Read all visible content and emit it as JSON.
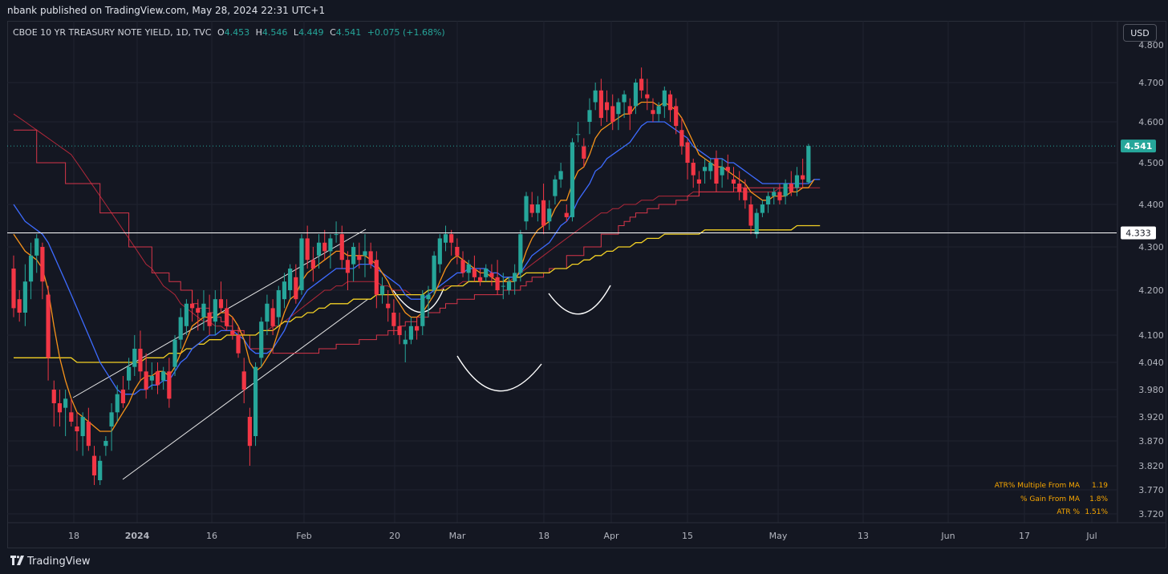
{
  "header": {
    "published_text": "nbank published on TradingView.com, May 28, 2024 22:31 UTC+1"
  },
  "legend": {
    "symbol": "CBOE 10 YR TREASURY NOTE YIELD, 1D, TVC",
    "open_label": "O",
    "open": "4.453",
    "high_label": "H",
    "high": "4.546",
    "low_label": "L",
    "low": "4.449",
    "close_label": "C",
    "close": "4.541",
    "change": "+0.075 (+1.68%)"
  },
  "currency_button": "USD",
  "price_badges": {
    "last": "4.541",
    "hline": "4.333"
  },
  "stats": [
    {
      "label": "ATR% Multiple From MA",
      "value": "1.19"
    },
    {
      "label": "% Gain From MA",
      "value": "1.8%"
    },
    {
      "label": "ATR %",
      "value": "1.51%"
    }
  ],
  "footer": {
    "brand": "TradingView",
    "logo_icon": "tradingview-logo-icon"
  },
  "colors": {
    "background": "#131722",
    "up": "#26a69a",
    "down": "#f23645",
    "hline": "#ffffff",
    "last_badge": "#26a69a"
  },
  "chart_data": {
    "type": "candlestick",
    "x_axis_labels": [
      "18",
      "2024",
      "16",
      "Feb",
      "20",
      "Mar",
      "18",
      "Apr",
      "15",
      "May",
      "13",
      "Jun",
      "17",
      "Jul"
    ],
    "y_axis_labels": [
      "4.700",
      "4.600",
      "4.500",
      "4.400",
      "4.300",
      "4.200",
      "4.100",
      "4.040",
      "3.980",
      "3.920",
      "3.870",
      "3.820",
      "3.770",
      "3.720"
    ],
    "y_axis_partial_label": "4.800",
    "horizontal_line": 4.333,
    "last_price": 4.541,
    "candles": [
      [
        4.25,
        4.28,
        4.14,
        4.16
      ],
      [
        4.18,
        4.2,
        4.13,
        4.15
      ],
      [
        4.15,
        4.26,
        4.12,
        4.22
      ],
      [
        4.22,
        4.31,
        4.18,
        4.28
      ],
      [
        4.28,
        4.33,
        4.24,
        4.32
      ],
      [
        4.3,
        4.31,
        4.18,
        4.22
      ],
      [
        4.19,
        4.21,
        4.0,
        4.05
      ],
      [
        3.98,
        4.0,
        3.9,
        3.95
      ],
      [
        3.95,
        3.98,
        3.9,
        3.93
      ],
      [
        3.94,
        3.98,
        3.88,
        3.96
      ],
      [
        3.93,
        3.96,
        3.9,
        3.91
      ],
      [
        3.9,
        3.93,
        3.85,
        3.89
      ],
      [
        3.88,
        3.93,
        3.84,
        3.92
      ],
      [
        3.91,
        3.94,
        3.85,
        3.86
      ],
      [
        3.84,
        3.86,
        3.78,
        3.8
      ],
      [
        3.79,
        3.84,
        3.78,
        3.83
      ],
      [
        3.86,
        3.88,
        3.84,
        3.87
      ],
      [
        3.9,
        3.95,
        3.85,
        3.93
      ],
      [
        3.93,
        3.99,
        3.91,
        3.97
      ],
      [
        3.98,
        4.01,
        3.94,
        3.95
      ],
      [
        4.0,
        4.05,
        3.98,
        4.03
      ],
      [
        4.03,
        4.1,
        4.01,
        4.07
      ],
      [
        4.07,
        4.11,
        4.0,
        4.02
      ],
      [
        4.02,
        4.06,
        3.96,
        3.98
      ],
      [
        4.0,
        4.04,
        3.98,
        4.01
      ],
      [
        4.02,
        4.04,
        3.97,
        3.99
      ],
      [
        4.0,
        4.03,
        3.98,
        4.02
      ],
      [
        4.02,
        4.05,
        3.94,
        3.96
      ],
      [
        4.03,
        4.1,
        4.01,
        4.09
      ],
      [
        4.09,
        4.16,
        4.07,
        4.14
      ],
      [
        4.12,
        4.18,
        4.1,
        4.17
      ],
      [
        4.17,
        4.2,
        4.13,
        4.16
      ],
      [
        4.16,
        4.18,
        4.11,
        4.15
      ],
      [
        4.14,
        4.2,
        4.11,
        4.17
      ],
      [
        4.15,
        4.19,
        4.1,
        4.12
      ],
      [
        4.13,
        4.2,
        4.1,
        4.18
      ],
      [
        4.18,
        4.22,
        4.15,
        4.16
      ],
      [
        4.16,
        4.18,
        4.11,
        4.12
      ],
      [
        4.11,
        4.14,
        4.09,
        4.1
      ],
      [
        4.1,
        4.12,
        4.05,
        4.06
      ],
      [
        4.02,
        4.05,
        3.95,
        3.98
      ],
      [
        3.92,
        3.94,
        3.82,
        3.86
      ],
      [
        3.88,
        4.04,
        3.86,
        4.03
      ],
      [
        4.05,
        4.14,
        4.03,
        4.13
      ],
      [
        4.13,
        4.19,
        4.1,
        4.17
      ],
      [
        4.16,
        4.18,
        4.1,
        4.12
      ],
      [
        4.14,
        4.21,
        4.12,
        4.2
      ],
      [
        4.18,
        4.24,
        4.16,
        4.22
      ],
      [
        4.2,
        4.26,
        4.18,
        4.25
      ],
      [
        4.23,
        4.26,
        4.17,
        4.18
      ],
      [
        4.2,
        4.33,
        4.19,
        4.32
      ],
      [
        4.32,
        4.35,
        4.25,
        4.27
      ],
      [
        4.27,
        4.3,
        4.22,
        4.25
      ],
      [
        4.28,
        4.33,
        4.25,
        4.31
      ],
      [
        4.31,
        4.34,
        4.27,
        4.29
      ],
      [
        4.29,
        4.33,
        4.25,
        4.32
      ],
      [
        4.33,
        4.36,
        4.31,
        4.33
      ],
      [
        4.33,
        4.35,
        4.25,
        4.27
      ],
      [
        4.27,
        4.29,
        4.2,
        4.24
      ],
      [
        4.26,
        4.31,
        4.22,
        4.3
      ],
      [
        4.28,
        4.31,
        4.25,
        4.27
      ],
      [
        4.28,
        4.33,
        4.23,
        4.29
      ],
      [
        4.29,
        4.31,
        4.25,
        4.26
      ],
      [
        4.27,
        4.29,
        4.16,
        4.19
      ],
      [
        4.19,
        4.23,
        4.17,
        4.21
      ],
      [
        4.17,
        4.2,
        4.13,
        4.16
      ],
      [
        4.15,
        4.18,
        4.1,
        4.12
      ],
      [
        4.12,
        4.15,
        4.08,
        4.1
      ],
      [
        4.08,
        4.11,
        4.04,
        4.09
      ],
      [
        4.09,
        4.14,
        4.08,
        4.12
      ],
      [
        4.12,
        4.14,
        4.09,
        4.11
      ],
      [
        4.12,
        4.2,
        4.1,
        4.19
      ],
      [
        4.18,
        4.21,
        4.14,
        4.19
      ],
      [
        4.2,
        4.29,
        4.19,
        4.28
      ],
      [
        4.26,
        4.33,
        4.24,
        4.32
      ],
      [
        4.31,
        4.35,
        4.29,
        4.33
      ],
      [
        4.33,
        4.34,
        4.28,
        4.31
      ],
      [
        4.3,
        4.32,
        4.26,
        4.28
      ],
      [
        4.27,
        4.29,
        4.23,
        4.24
      ],
      [
        4.24,
        4.27,
        4.22,
        4.26
      ],
      [
        4.25,
        4.28,
        4.22,
        4.23
      ],
      [
        4.23,
        4.25,
        4.21,
        4.22
      ],
      [
        4.23,
        4.26,
        4.22,
        4.25
      ],
      [
        4.24,
        4.26,
        4.21,
        4.23
      ],
      [
        4.23,
        4.27,
        4.19,
        4.2
      ],
      [
        4.21,
        4.24,
        4.18,
        4.21
      ],
      [
        4.2,
        4.23,
        4.19,
        4.22
      ],
      [
        4.22,
        4.26,
        4.19,
        4.24
      ],
      [
        4.24,
        4.34,
        4.22,
        4.33
      ],
      [
        4.36,
        4.43,
        4.34,
        4.42
      ],
      [
        4.4,
        4.43,
        4.37,
        4.38
      ],
      [
        4.38,
        4.42,
        4.36,
        4.4
      ],
      [
        4.41,
        4.45,
        4.33,
        4.35
      ],
      [
        4.36,
        4.41,
        4.34,
        4.39
      ],
      [
        4.42,
        4.47,
        4.4,
        4.46
      ],
      [
        4.46,
        4.5,
        4.44,
        4.48
      ],
      [
        4.38,
        4.4,
        4.36,
        4.37
      ],
      [
        4.37,
        4.56,
        4.36,
        4.55
      ],
      [
        4.57,
        4.6,
        4.55,
        4.57
      ],
      [
        4.54,
        4.56,
        4.49,
        4.51
      ],
      [
        4.6,
        4.66,
        4.57,
        4.63
      ],
      [
        4.65,
        4.7,
        4.63,
        4.68
      ],
      [
        4.68,
        4.71,
        4.59,
        4.61
      ],
      [
        4.65,
        4.68,
        4.6,
        4.63
      ],
      [
        4.64,
        4.67,
        4.58,
        4.6
      ],
      [
        4.62,
        4.66,
        4.58,
        4.65
      ],
      [
        4.65,
        4.68,
        4.61,
        4.67
      ],
      [
        4.64,
        4.66,
        4.58,
        4.62
      ],
      [
        4.64,
        4.71,
        4.62,
        4.7
      ],
      [
        4.71,
        4.74,
        4.66,
        4.68
      ],
      [
        4.67,
        4.71,
        4.63,
        4.66
      ],
      [
        4.63,
        4.66,
        4.6,
        4.62
      ],
      [
        4.62,
        4.65,
        4.6,
        4.64
      ],
      [
        4.64,
        4.69,
        4.61,
        4.68
      ],
      [
        4.67,
        4.68,
        4.6,
        4.63
      ],
      [
        4.64,
        4.66,
        4.57,
        4.59
      ],
      [
        4.58,
        4.61,
        4.52,
        4.54
      ],
      [
        4.55,
        4.56,
        4.46,
        4.5
      ],
      [
        4.5,
        4.51,
        4.44,
        4.47
      ],
      [
        4.46,
        4.48,
        4.42,
        4.45
      ],
      [
        4.48,
        4.51,
        4.45,
        4.49
      ],
      [
        4.48,
        4.51,
        4.46,
        4.5
      ],
      [
        4.51,
        4.53,
        4.43,
        4.45
      ],
      [
        4.47,
        4.51,
        4.44,
        4.49
      ],
      [
        4.49,
        4.52,
        4.46,
        4.48
      ],
      [
        4.46,
        4.49,
        4.43,
        4.45
      ],
      [
        4.45,
        4.48,
        4.41,
        4.43
      ],
      [
        4.44,
        4.46,
        4.39,
        4.41
      ],
      [
        4.4,
        4.42,
        4.33,
        4.35
      ],
      [
        4.33,
        4.39,
        4.32,
        4.38
      ],
      [
        4.38,
        4.41,
        4.37,
        4.4
      ],
      [
        4.4,
        4.43,
        4.38,
        4.42
      ],
      [
        4.42,
        4.44,
        4.4,
        4.43
      ],
      [
        4.43,
        4.45,
        4.4,
        4.41
      ],
      [
        4.42,
        4.46,
        4.4,
        4.45
      ],
      [
        4.45,
        4.48,
        4.42,
        4.43
      ],
      [
        4.44,
        4.49,
        4.42,
        4.47
      ],
      [
        4.47,
        4.51,
        4.44,
        4.46
      ],
      [
        4.453,
        4.546,
        4.449,
        4.541
      ]
    ],
    "ma_orange": [
      4.33,
      4.31,
      4.29,
      4.28,
      4.27,
      4.25,
      4.2,
      4.12,
      4.05,
      4.0,
      3.96,
      3.93,
      3.92,
      3.91,
      3.9,
      3.89,
      3.89,
      3.89,
      3.91,
      3.93,
      3.95,
      3.98,
      4.0,
      4.01,
      4.01,
      4.02,
      4.02,
      4.01,
      4.03,
      4.06,
      4.09,
      4.12,
      4.13,
      4.14,
      4.14,
      4.14,
      4.15,
      4.15,
      4.14,
      4.12,
      4.09,
      4.04,
      4.02,
      4.03,
      4.05,
      4.07,
      4.11,
      4.15,
      4.18,
      4.19,
      4.22,
      4.24,
      4.25,
      4.26,
      4.27,
      4.28,
      4.29,
      4.29,
      4.28,
      4.28,
      4.28,
      4.28,
      4.27,
      4.26,
      4.24,
      4.22,
      4.19,
      4.17,
      4.15,
      4.14,
      4.14,
      4.15,
      4.17,
      4.19,
      4.22,
      4.25,
      4.27,
      4.28,
      4.27,
      4.26,
      4.25,
      4.24,
      4.24,
      4.23,
      4.22,
      4.22,
      4.22,
      4.22,
      4.25,
      4.29,
      4.32,
      4.34,
      4.35,
      4.36,
      4.39,
      4.41,
      4.41,
      4.45,
      4.48,
      4.49,
      4.52,
      4.56,
      4.58,
      4.59,
      4.6,
      4.61,
      4.62,
      4.62,
      4.64,
      4.65,
      4.65,
      4.65,
      4.64,
      4.65,
      4.64,
      4.63,
      4.61,
      4.58,
      4.55,
      4.52,
      4.51,
      4.5,
      4.49,
      4.49,
      4.48,
      4.47,
      4.46,
      4.45,
      4.43,
      4.42,
      4.41,
      4.41,
      4.42,
      4.42,
      4.42,
      4.43,
      4.43,
      4.44,
      4.44,
      4.46
    ],
    "ma_blue": [
      4.4,
      4.38,
      4.36,
      4.35,
      4.34,
      4.33,
      4.31,
      4.28,
      4.25,
      4.22,
      4.19,
      4.16,
      4.13,
      4.1,
      4.07,
      4.04,
      4.02,
      4.0,
      3.98,
      3.97,
      3.97,
      3.97,
      3.98,
      3.98,
      3.99,
      3.99,
      4.0,
      4.0,
      4.02,
      4.04,
      4.05,
      4.07,
      4.08,
      4.09,
      4.1,
      4.1,
      4.11,
      4.11,
      4.11,
      4.1,
      4.09,
      4.07,
      4.06,
      4.06,
      4.06,
      4.07,
      4.09,
      4.11,
      4.14,
      4.16,
      4.18,
      4.2,
      4.21,
      4.22,
      4.23,
      4.24,
      4.25,
      4.25,
      4.25,
      4.25,
      4.26,
      4.26,
      4.26,
      4.25,
      4.24,
      4.23,
      4.22,
      4.21,
      4.19,
      4.18,
      4.18,
      4.18,
      4.19,
      4.2,
      4.21,
      4.22,
      4.23,
      4.24,
      4.24,
      4.25,
      4.25,
      4.25,
      4.25,
      4.24,
      4.24,
      4.23,
      4.23,
      4.23,
      4.24,
      4.26,
      4.28,
      4.29,
      4.3,
      4.31,
      4.33,
      4.35,
      4.36,
      4.38,
      4.41,
      4.43,
      4.45,
      4.48,
      4.49,
      4.51,
      4.52,
      4.53,
      4.54,
      4.55,
      4.57,
      4.59,
      4.6,
      4.6,
      4.6,
      4.6,
      4.59,
      4.58,
      4.57,
      4.56,
      4.54,
      4.53,
      4.52,
      4.51,
      4.51,
      4.51,
      4.5,
      4.5,
      4.49,
      4.48,
      4.47,
      4.46,
      4.45,
      4.45,
      4.45,
      4.45,
      4.45,
      4.45,
      4.45,
      4.45,
      4.45,
      4.46,
      4.46
    ],
    "ma_yellow": [
      4.05,
      4.05,
      4.05,
      4.05,
      4.05,
      4.05,
      4.05,
      4.05,
      4.05,
      4.05,
      4.05,
      4.04,
      4.04,
      4.04,
      4.04,
      4.04,
      4.04,
      4.04,
      4.04,
      4.04,
      4.04,
      4.04,
      4.04,
      4.05,
      4.05,
      4.05,
      4.05,
      4.06,
      4.06,
      4.06,
      4.07,
      4.07,
      4.08,
      4.08,
      4.09,
      4.09,
      4.09,
      4.1,
      4.1,
      4.1,
      4.1,
      4.1,
      4.1,
      4.11,
      4.11,
      4.11,
      4.12,
      4.13,
      4.13,
      4.14,
      4.14,
      4.15,
      4.15,
      4.16,
      4.16,
      4.17,
      4.17,
      4.17,
      4.17,
      4.18,
      4.18,
      4.18,
      4.18,
      4.19,
      4.19,
      4.19,
      4.19,
      4.19,
      4.19,
      4.19,
      4.19,
      4.19,
      4.2,
      4.2,
      4.2,
      4.2,
      4.21,
      4.21,
      4.21,
      4.22,
      4.22,
      4.22,
      4.22,
      4.22,
      4.22,
      4.22,
      4.23,
      4.23,
      4.23,
      4.24,
      4.24,
      4.24,
      4.24,
      4.24,
      4.25,
      4.25,
      4.25,
      4.26,
      4.26,
      4.27,
      4.27,
      4.28,
      4.28,
      4.29,
      4.29,
      4.3,
      4.3,
      4.3,
      4.31,
      4.31,
      4.32,
      4.32,
      4.32,
      4.33,
      4.33,
      4.33,
      4.33,
      4.33,
      4.33,
      4.33,
      4.34,
      4.34,
      4.34,
      4.34,
      4.34,
      4.34,
      4.34,
      4.34,
      4.34,
      4.34,
      4.34,
      4.34,
      4.34,
      4.34,
      4.34,
      4.34,
      4.35,
      4.35,
      4.35,
      4.35,
      4.35
    ],
    "band_upper": [
      4.62,
      4.61,
      4.6,
      4.59,
      4.58,
      4.57,
      4.56,
      4.55,
      4.54,
      4.53,
      4.52,
      4.5,
      4.48,
      4.46,
      4.44,
      4.42,
      4.4,
      4.38,
      4.36,
      4.34,
      4.32,
      4.3,
      4.28,
      4.26,
      4.25,
      4.23,
      4.21,
      4.2,
      4.19,
      4.17,
      4.16,
      4.15,
      4.14,
      4.13,
      4.13,
      4.12,
      4.12,
      4.11,
      4.11,
      4.11,
      4.1,
      4.1,
      4.1,
      4.11,
      4.11,
      4.12,
      4.12,
      4.13,
      4.14,
      4.15,
      4.16,
      4.17,
      4.18,
      4.19,
      4.2,
      4.2,
      4.21,
      4.21,
      4.22,
      4.22,
      4.22,
      4.22,
      4.22,
      4.22,
      4.21,
      4.21,
      4.2,
      4.2,
      4.2,
      4.19,
      4.19,
      4.19,
      4.2,
      4.2,
      4.2,
      4.21,
      4.21,
      4.21,
      4.22,
      4.22,
      4.22,
      4.22,
      4.22,
      4.22,
      4.22,
      4.22,
      4.22,
      4.23,
      4.24,
      4.25,
      4.26,
      4.27,
      4.28,
      4.29,
      4.3,
      4.31,
      4.32,
      4.33,
      4.34,
      4.35,
      4.36,
      4.37,
      4.38,
      4.38,
      4.39,
      4.39,
      4.4,
      4.4,
      4.4,
      4.41,
      4.41,
      4.41,
      4.42,
      4.42,
      4.42,
      4.42,
      4.42,
      4.42,
      4.43,
      4.43,
      4.43,
      4.43,
      4.43,
      4.43,
      4.43,
      4.43,
      4.43,
      4.43,
      4.43,
      4.43,
      4.43,
      4.43,
      4.43,
      4.44,
      4.44,
      4.44,
      4.44,
      4.44,
      4.44,
      4.44,
      4.44
    ],
    "band_stepped": [
      4.58,
      4.58,
      4.58,
      4.58,
      4.5,
      4.5,
      4.5,
      4.5,
      4.5,
      4.45,
      4.45,
      4.45,
      4.45,
      4.45,
      4.45,
      4.38,
      4.38,
      4.38,
      4.38,
      4.38,
      4.3,
      4.3,
      4.3,
      4.3,
      4.24,
      4.24,
      4.24,
      4.22,
      4.22,
      4.2,
      4.2,
      4.17,
      4.16,
      4.16,
      4.15,
      4.14,
      4.13,
      4.12,
      4.11,
      4.11,
      4.1,
      4.07,
      4.07,
      4.07,
      4.07,
      4.06,
      4.06,
      4.06,
      4.06,
      4.06,
      4.06,
      4.06,
      4.06,
      4.07,
      4.07,
      4.07,
      4.08,
      4.08,
      4.08,
      4.08,
      4.09,
      4.09,
      4.09,
      4.1,
      4.1,
      4.11,
      4.11,
      4.12,
      4.13,
      4.13,
      4.14,
      4.14,
      4.15,
      4.15,
      4.16,
      4.17,
      4.17,
      4.18,
      4.18,
      4.18,
      4.19,
      4.19,
      4.19,
      4.19,
      4.19,
      4.2,
      4.2,
      4.2,
      4.21,
      4.22,
      4.23,
      4.23,
      4.24,
      4.25,
      4.25,
      4.25,
      4.28,
      4.28,
      4.28,
      4.3,
      4.3,
      4.3,
      4.33,
      4.33,
      4.33,
      4.35,
      4.36,
      4.37,
      4.38,
      4.38,
      4.39,
      4.39,
      4.4,
      4.4,
      4.4,
      4.41,
      4.41,
      4.42,
      4.42,
      4.43,
      4.43,
      4.43,
      4.43,
      4.43,
      4.43,
      4.44,
      4.44,
      4.44,
      4.44,
      4.44,
      4.44,
      4.44,
      4.44,
      4.44,
      4.44,
      4.44,
      4.44,
      4.44,
      4.44
    ]
  }
}
